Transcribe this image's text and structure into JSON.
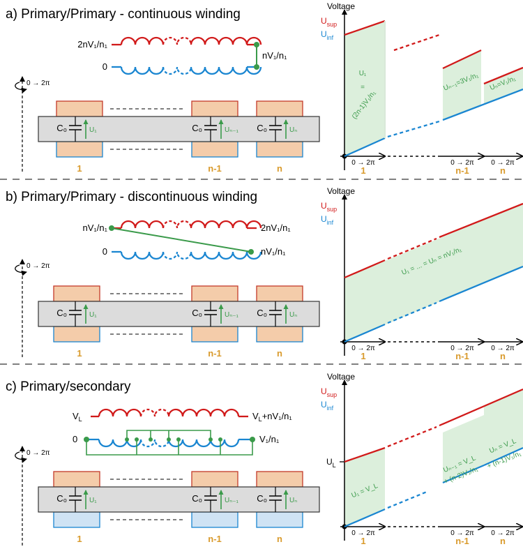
{
  "panels": [
    {
      "id": "a",
      "title": "a) Primary/Primary - continuous winding",
      "top_coil_left": "2nV₁/n₁",
      "bottom_coil_left": "0",
      "right_label": "nV₁/n₁",
      "bottom_coil_right": "",
      "capacitor": "C₀",
      "voltages": [
        "U₁",
        "Uₙ₋₁",
        "Uₙ"
      ],
      "cores": [
        "1",
        "n-1",
        "n"
      ],
      "rotation": "0 → 2π",
      "graph_annotations": [
        "U₁",
        "=",
        "(2n-1)V₁/n₁",
        "Uₙ₋₁=3V₁/n₁",
        "Uₙ=V₁/n₁"
      ]
    },
    {
      "id": "b",
      "title": "b) Primary/Primary - discontinuous winding",
      "top_coil_left": "nV₁/n₁",
      "top_coil_right": "2nV₁/n₁",
      "bottom_coil_left": "0",
      "bottom_coil_right": "nV₁/n₁",
      "capacitor": "C₀",
      "voltages": [
        "U₁",
        "Uₙ₋₁",
        "Uₙ"
      ],
      "cores": [
        "1",
        "n-1",
        "n"
      ],
      "rotation": "0 → 2π",
      "graph_annotations": [
        "U₁ = ... = Uₙ = nV₁/n₁"
      ]
    },
    {
      "id": "c",
      "title": "c) Primary/secondary",
      "top_coil_left": "V_L",
      "top_coil_right": "V_L+nV₁/n₁",
      "bottom_coil_left": "0",
      "bottom_coil_right": "V₁/n₁",
      "capacitor": "C₀",
      "voltages": [
        "U₁",
        "Uₙ₋₁",
        "Uₙ"
      ],
      "cores": [
        "1",
        "n-1",
        "n"
      ],
      "rotation": "0 → 2π",
      "graph_annotations": [
        "U_L",
        "U₁ = V_L",
        "Uₙ₋₁ = V_L",
        "+ (n-2)V₁/n₁",
        "Uₙ = V_L",
        "+ (n-1)V₁/n₁"
      ]
    }
  ],
  "graph": {
    "ylabel": "Voltage",
    "usup": "U",
    "usup_sub": "sup",
    "uinf": "U",
    "uinf_sub": "inf",
    "x_ticks": [
      "0 → 2π",
      "0 → 2π",
      "0 → 2π"
    ],
    "x_cores": [
      "1",
      "n-1",
      "n"
    ]
  },
  "colors": {
    "red": "#d11a1a",
    "blue": "#1a86d1",
    "green": "#3a9a4a",
    "core": "#f4ccaa",
    "core_light_blue": "#cfe3f4",
    "shaft": "#dcdcdc",
    "fill": "#dcefdc",
    "orange": "#d99a2b"
  }
}
